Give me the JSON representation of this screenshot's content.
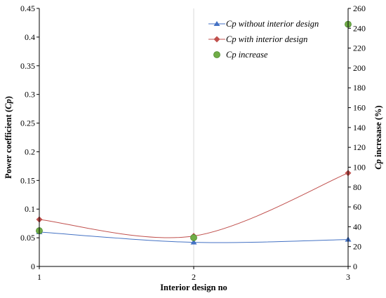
{
  "chart_data": {
    "type": "line",
    "x": [
      1,
      2,
      3
    ],
    "xticks": [
      "1",
      "2",
      "3"
    ],
    "xlabel": "Interior design no",
    "ylabel": "Power coefficient (Cp)",
    "ylabel_parts": [
      "Power coefficient (",
      "Cp",
      ")"
    ],
    "y2label": "Cp increaase (%)",
    "y2label_parts": [
      "Cp",
      " increaase (%)"
    ],
    "xlim": [
      1,
      3
    ],
    "ylim": [
      0,
      0.45
    ],
    "yticks": [
      "0",
      "0.05",
      "0.1",
      "0.15",
      "0.2",
      "0.25",
      "0.3",
      "0.35",
      "0.4",
      "0.45"
    ],
    "y2lim": [
      0,
      260
    ],
    "y2ticks": [
      "0",
      "20",
      "40",
      "60",
      "80",
      "100",
      "120",
      "140",
      "160",
      "180",
      "200",
      "220",
      "240",
      "260"
    ],
    "grid": "vertical",
    "legend_position": "top-right",
    "series": [
      {
        "name": "Cp without interior design",
        "marker": "triangle",
        "color": "#4472c4",
        "axis": "left",
        "values": [
          0.06,
          0.042,
          0.047
        ]
      },
      {
        "name": "Cp with interior design",
        "marker": "diamond",
        "color": "#c0504d",
        "axis": "left",
        "values": [
          0.082,
          0.053,
          0.163
        ]
      },
      {
        "name": "Cp increase",
        "marker": "circle",
        "color": "#70ad47",
        "axis": "right",
        "values": [
          36,
          29,
          244
        ]
      }
    ]
  }
}
